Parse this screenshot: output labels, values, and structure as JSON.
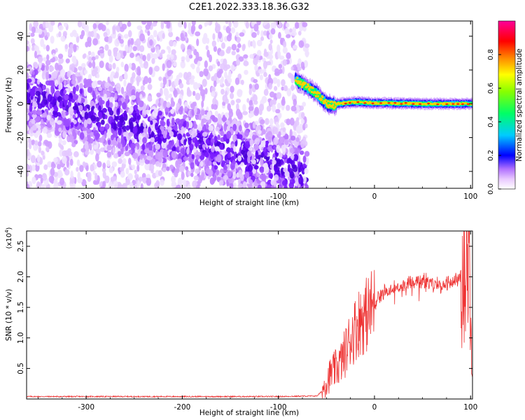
{
  "title": "C2E1.2022.333.18.36.G32",
  "chart_data": [
    {
      "type": "heatmap",
      "xlabel": "Height of straight line (km)",
      "ylabel": "Frequency (Hz)",
      "xlim": [
        -362,
        102
      ],
      "ylim": [
        -50,
        49
      ],
      "xticks": [
        -300,
        -200,
        -100,
        0,
        100
      ],
      "yticks": [
        -40,
        -20,
        0,
        20,
        40
      ],
      "colorbar": {
        "label": "Normalized spectral amplitude",
        "range": [
          0,
          1
        ],
        "ticks": [
          "0.0",
          "0.2",
          "0.4",
          "0.6",
          "0.8"
        ],
        "tick_values": [
          0.0,
          0.2,
          0.4,
          0.6,
          0.8
        ],
        "colormap": [
          "#ffffff",
          "#cc66ff",
          "#0000ff",
          "#00ccff",
          "#00ff00",
          "#ffff00",
          "#ff8800",
          "#ff0000",
          "#ff0099"
        ]
      },
      "regions": [
        {
          "x_range": [
            -362,
            -70
          ],
          "description": "diffuse low-amplitude noise, denser band trending from ~5 Hz at -360 km to ~-40 Hz at -80 km"
        },
        {
          "x_range": [
            -82,
            -40
          ],
          "ridge_y": [
            [
              -82,
              14
            ],
            [
              -70,
              10
            ],
            [
              -60,
              6
            ],
            [
              -50,
              0
            ],
            [
              -40,
              -1
            ]
          ]
        },
        {
          "x_range": [
            -40,
            102
          ],
          "ridge_y": [
            [
              -40,
              0
            ],
            [
              -20,
              1
            ],
            [
              0,
              0.5
            ],
            [
              50,
              0
            ],
            [
              102,
              0
            ]
          ]
        }
      ]
    },
    {
      "type": "line",
      "xlabel": "Height of straight line (km)",
      "ylabel": "SNR (10 * v/v)",
      "ylabel_exponent": "(x10^4)",
      "yunit_prefix": "(x10",
      "yunit_exp": "4",
      "yunit_suffix": ")",
      "xlim": [
        -362,
        102
      ],
      "ylim": [
        0,
        2.75
      ],
      "xticks": [
        -300,
        -200,
        -100,
        0,
        100
      ],
      "yticks": [
        0.5,
        1.0,
        1.5,
        2.0,
        2.5
      ],
      "ytick_labels": [
        "0.5",
        "1.0",
        "1.5",
        "2.0",
        "2.5"
      ],
      "color": "#ee3333",
      "series": [
        {
          "x": [
            -362,
            -300,
            -200,
            -100,
            -60,
            -55,
            -50,
            -45,
            -40,
            -35,
            -30,
            -25,
            -20,
            -15,
            -10,
            -5,
            0,
            5,
            10,
            20,
            30,
            40,
            50,
            60,
            70,
            80,
            90,
            95,
            98,
            100,
            102
          ],
          "values": [
            0.04,
            0.04,
            0.04,
            0.04,
            0.05,
            0.12,
            0.3,
            0.42,
            0.5,
            0.6,
            0.78,
            1.0,
            1.15,
            1.3,
            1.35,
            1.45,
            1.55,
            1.68,
            1.75,
            1.82,
            1.87,
            1.92,
            1.95,
            1.9,
            1.85,
            1.9,
            2.05,
            2.2,
            2.5,
            1.2,
            0.3
          ]
        }
      ]
    }
  ]
}
